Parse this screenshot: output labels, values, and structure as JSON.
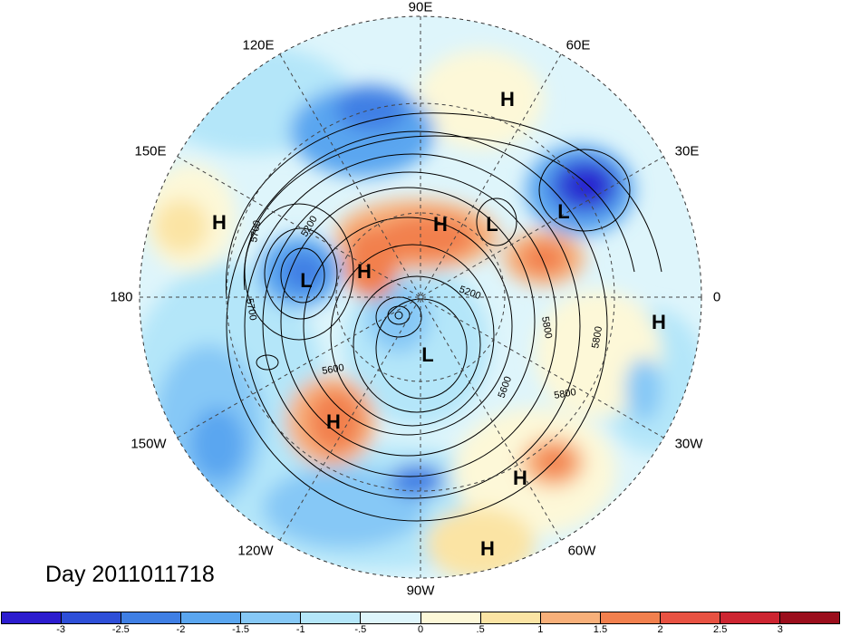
{
  "title": "Day 2011011718",
  "longitude_labels": {
    "deg90e": "90E",
    "deg60e": "60E",
    "deg120e": "120E",
    "deg30e": "30E",
    "deg150e": "150E",
    "deg0": "0",
    "deg180": "180",
    "deg30w": "30W",
    "deg150w": "150W",
    "deg60w": "60W",
    "deg120w": "120W",
    "deg90w": "90W"
  },
  "pressure_centers": {
    "h1": "H",
    "h2": "H",
    "h3": "H",
    "h4": "H",
    "h5": "H",
    "h6": "H",
    "h7": "H",
    "h8": "H",
    "l1": "L",
    "l2": "L",
    "l3": "L",
    "l4": "L"
  },
  "contour_labels": {
    "c1": "5200",
    "c2": "5700",
    "c3": "5700",
    "c4": "5600",
    "c5": "5200",
    "c6": "5800",
    "c7": "5600",
    "c8": "5800"
  },
  "colorbar": {
    "colors": [
      "#2c1ccf",
      "#2e4fd8",
      "#3f7fe4",
      "#5aa6f0",
      "#86c8f6",
      "#b4e6f9",
      "#def5fb",
      "#fdf8d8",
      "#fbe4a4",
      "#f8b07a",
      "#f2804e",
      "#e85242",
      "#cd2531",
      "#9b0e1c"
    ],
    "ticks": [
      "-3",
      "-2.5",
      "-2",
      "-1.5",
      "-1",
      "-.5",
      "0",
      ".5",
      "1",
      "1.5",
      "2",
      "2.5",
      "3"
    ]
  }
}
